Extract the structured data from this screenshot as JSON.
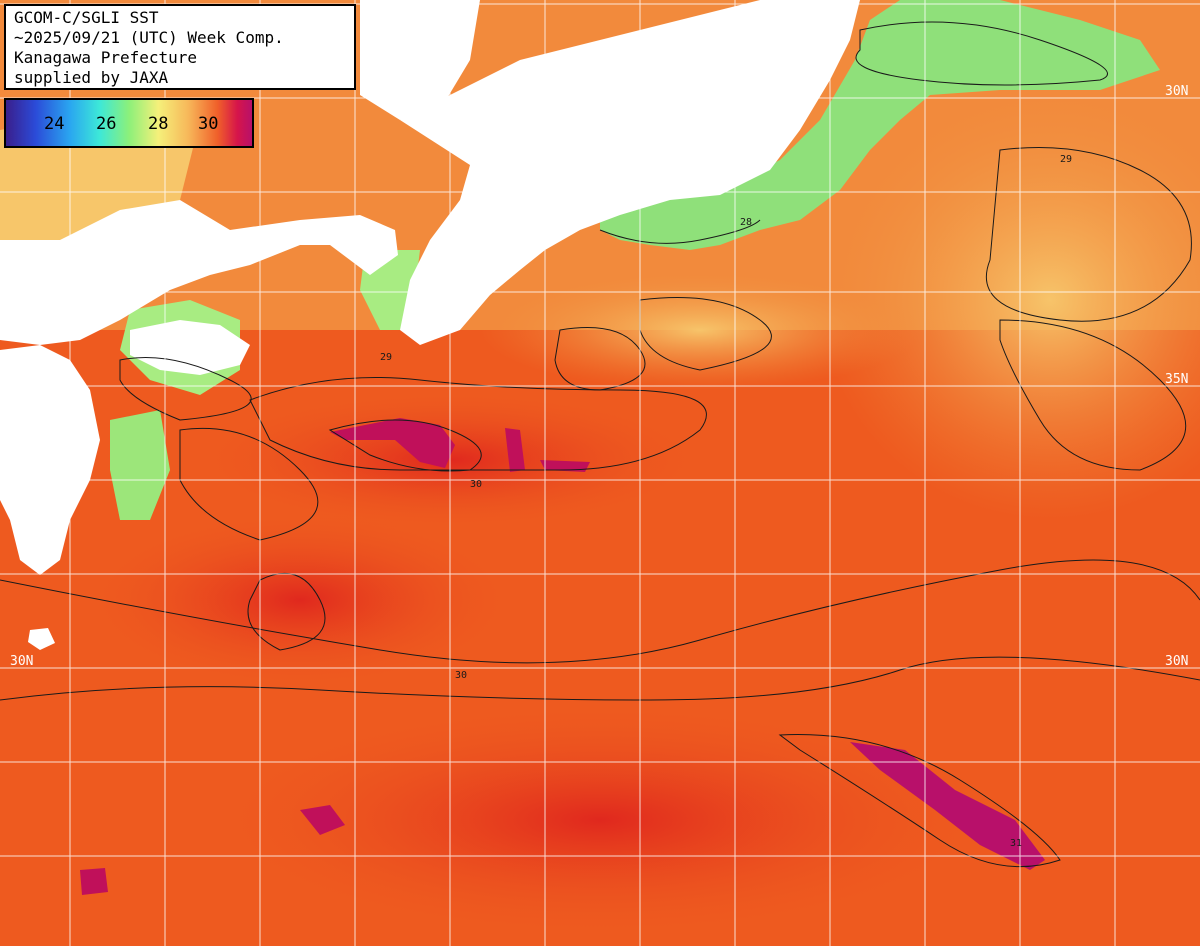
{
  "title": {
    "line1": "GCOM-C/SGLI SST",
    "line2": "~2025/09/21 (UTC) Week Comp.",
    "line3": "Kanagawa Prefecture",
    "line4": "supplied by JAXA"
  },
  "legend": {
    "ticks": [
      "24",
      "26",
      "28",
      "30"
    ]
  },
  "latitude_labels": {
    "left_30": "30N",
    "right_30": "30N",
    "right_35": "35N",
    "right_top": "30N"
  },
  "colors": {
    "land": "#ffffff",
    "grid": "#ffffff",
    "sst_cool": "#8cf07a",
    "sst_warm": "#f0602a",
    "sst_hot": "#b8106a"
  },
  "contour_labels": [
    "28",
    "29",
    "30",
    "31"
  ]
}
